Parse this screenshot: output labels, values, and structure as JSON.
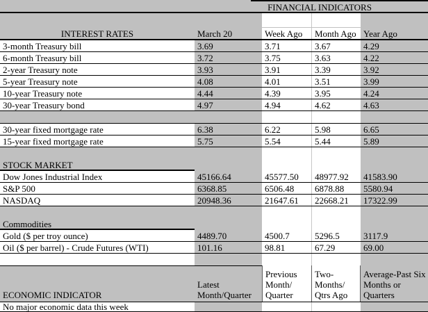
{
  "title": "FINANCIAL INDICATORS",
  "header": {
    "col0": "INTEREST RATES",
    "columns": [
      "March 20",
      "Week Ago",
      "Month Ago",
      "Year Ago"
    ]
  },
  "groups": [
    {
      "name": "treasuries",
      "rows": [
        {
          "label": "3-month Treasury bill",
          "values": [
            "3.69",
            "3.71",
            "3.67",
            "4.29"
          ]
        },
        {
          "label": "6-month Treasury bill",
          "values": [
            "3.72",
            "3.75",
            "3.63",
            "4.22"
          ]
        },
        {
          "label": "2-year Treasury note",
          "values": [
            "3.93",
            "3.91",
            "3.39",
            "3.92"
          ]
        },
        {
          "label": "5-year Treasury note",
          "values": [
            "4.08",
            "4.01",
            "3.51",
            "3.99"
          ]
        },
        {
          "label": "10-year Treasury note",
          "values": [
            "4.44",
            "4.39",
            "3.95",
            "4.24"
          ]
        },
        {
          "label": "30-year Treasury bond",
          "values": [
            "4.97",
            "4.94",
            "4.62",
            "4.63"
          ]
        }
      ]
    },
    {
      "name": "mortgages",
      "rows": [
        {
          "label": "30-year fixed mortgage rate",
          "values": [
            "6.38",
            "6.22",
            "5.98",
            "6.65"
          ]
        },
        {
          "label": "15-year fixed mortgage rate",
          "values": [
            "5.75",
            "5.54",
            "5.44",
            "5.89"
          ]
        }
      ]
    },
    {
      "name": "stock-market",
      "section_label": "STOCK MARKET",
      "rows": [
        {
          "label": "Dow Jones Industrial Index",
          "values": [
            "45166.64",
            "45577.50",
            "48977.92",
            "41583.90"
          ]
        },
        {
          "label": "S&P 500",
          "values": [
            "6368.85",
            "6506.48",
            "6878.88",
            "5580.94"
          ]
        },
        {
          "label": "NASDAQ",
          "values": [
            "20948.36",
            "21647.61",
            "22668.21",
            "17322.99"
          ]
        }
      ]
    },
    {
      "name": "commodities",
      "section_label": "Commodities",
      "rows": [
        {
          "label": "Gold ($ per troy ounce)",
          "values": [
            "4489.70",
            "4500.7",
            "5296.5",
            "3117.9"
          ]
        },
        {
          "label": "Oil ($ per barrel) - Crude Futures (WTI)",
          "values": [
            "101.16",
            "98.81",
            "67.29",
            "69.00"
          ]
        }
      ]
    }
  ],
  "economic": {
    "label": "ECONOMIC INDICATOR",
    "columns": [
      "Latest\nMonth/Quarter",
      "Previous\nMonth/\nQuarter",
      "Two-\nMonths/\nQtrs Ago",
      "Average-Past Six\nMonths or\nQuarters"
    ],
    "note": "No major economic data this week"
  },
  "colors": {
    "cell_fill": "#c0c0c0",
    "unfilled_cell": "#ffffff",
    "border": "#000000"
  }
}
